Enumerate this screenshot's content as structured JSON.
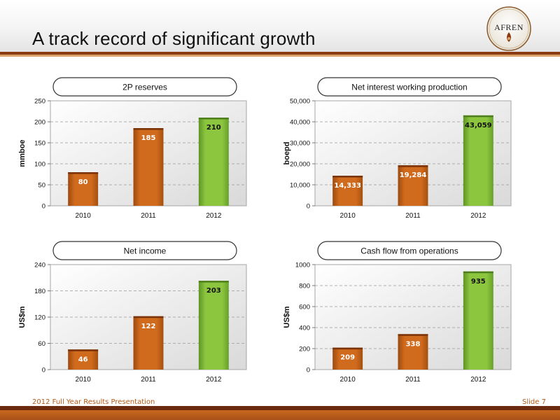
{
  "slide": {
    "title": "A track record of significant growth",
    "logo_text": "AFREN",
    "footer_left": "2012 Full Year Results Presentation",
    "footer_right": "Slide 7"
  },
  "colors": {
    "orange_bar": "#d06a1c",
    "green_bar": "#8cc63f",
    "accent_dark": "#8b3a12",
    "footer_text": "#b35a16"
  },
  "chart_data": [
    {
      "type": "bar",
      "title": "2P reserves",
      "ylabel": "mmboe",
      "xlabel": "",
      "categories": [
        "2010",
        "2011",
        "2012"
      ],
      "values": [
        80,
        185,
        210
      ],
      "value_labels": [
        "80",
        "185",
        "210"
      ],
      "ylim": [
        0,
        250
      ],
      "yticks": [
        "0",
        "50",
        "100",
        "150",
        "200",
        "250"
      ],
      "grid": true
    },
    {
      "type": "bar",
      "title": "Net interest working production",
      "ylabel": "boepd",
      "xlabel": "",
      "categories": [
        "2010",
        "2011",
        "2012"
      ],
      "values": [
        14333,
        19284,
        43059
      ],
      "value_labels": [
        "14,333",
        "19,284",
        "43,059"
      ],
      "ylim": [
        0,
        50000
      ],
      "yticks": [
        "0",
        "10,000",
        "20,000",
        "30,000",
        "40,000",
        "50,000"
      ],
      "grid": true
    },
    {
      "type": "bar",
      "title": "Net income",
      "ylabel": "US$m",
      "xlabel": "",
      "categories": [
        "2010",
        "2011",
        "2012"
      ],
      "values": [
        46,
        122,
        203
      ],
      "value_labels": [
        "46",
        "122",
        "203"
      ],
      "ylim": [
        0,
        240
      ],
      "yticks": [
        "0",
        "60",
        "120",
        "180",
        "240"
      ],
      "grid": true
    },
    {
      "type": "bar",
      "title": "Cash flow from operations",
      "ylabel": "US$m",
      "xlabel": "",
      "categories": [
        "2010",
        "2011",
        "2012"
      ],
      "values": [
        209,
        338,
        935
      ],
      "value_labels": [
        "209",
        "338",
        "935"
      ],
      "ylim": [
        0,
        1000
      ],
      "yticks": [
        "0",
        "200",
        "400",
        "600",
        "800",
        "1000"
      ],
      "grid": true
    }
  ]
}
